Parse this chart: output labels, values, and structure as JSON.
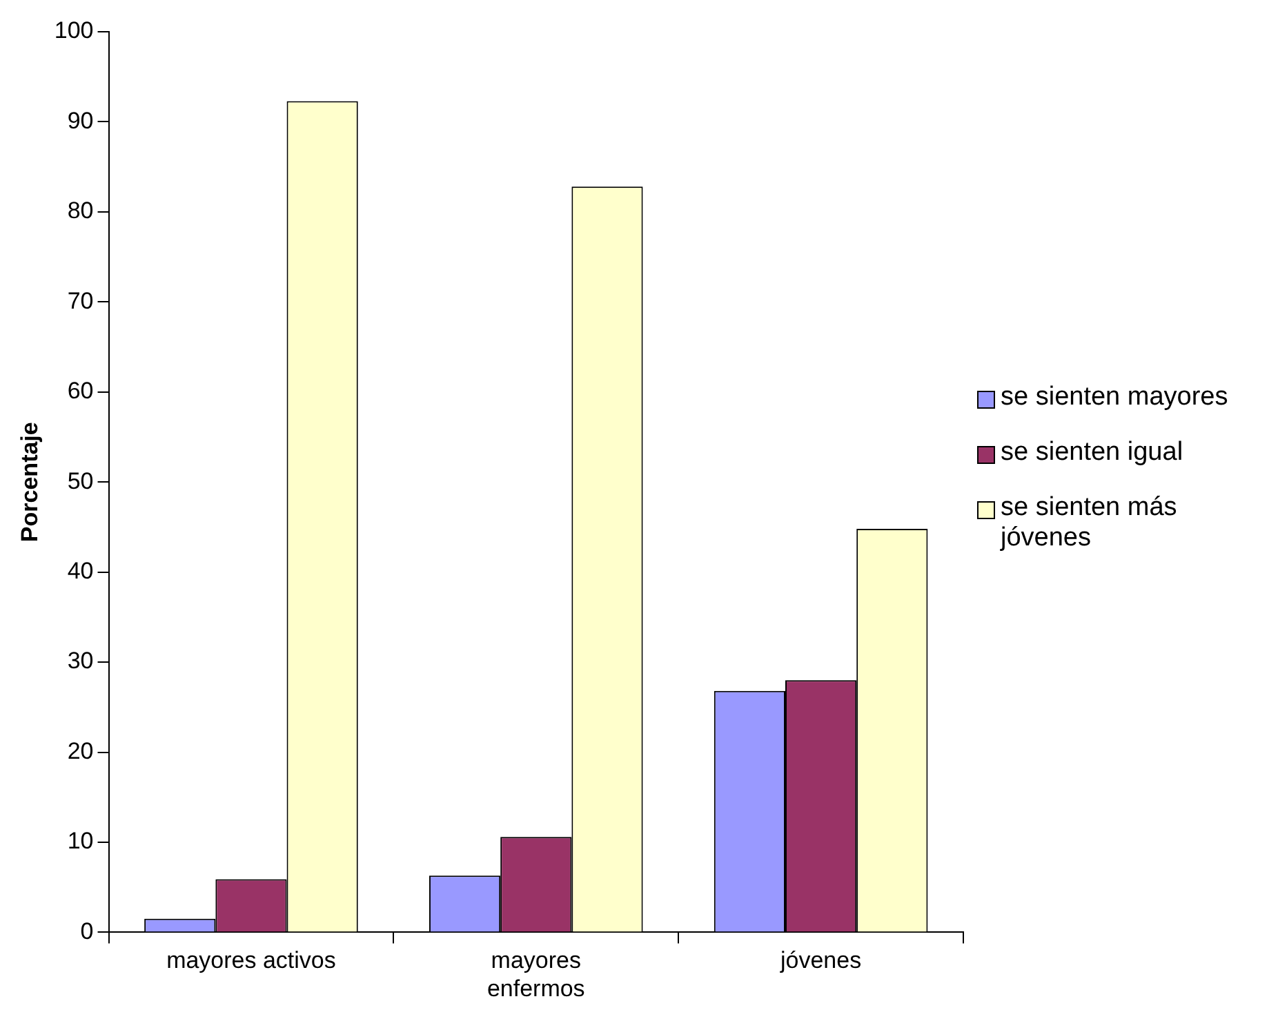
{
  "chart_data": {
    "type": "bar",
    "ylabel": "Porcentaje",
    "categories": [
      "mayores activos",
      "mayores enfermos",
      "jóvenes"
    ],
    "series": [
      {
        "name": "se sienten mayores",
        "color": "#9999ff",
        "values": [
          1.5,
          6.3,
          26.8
        ]
      },
      {
        "name": "se sienten igual",
        "color": "#993366",
        "values": [
          5.9,
          10.6,
          28
        ]
      },
      {
        "name": "se sienten más jóvenes",
        "color": "#ffffcc",
        "values": [
          92.3,
          82.8,
          44.8
        ]
      }
    ],
    "ylim": [
      0,
      100
    ],
    "yticks": [
      0,
      10,
      20,
      30,
      40,
      50,
      60,
      70,
      80,
      90,
      100
    ],
    "legend": "right"
  }
}
